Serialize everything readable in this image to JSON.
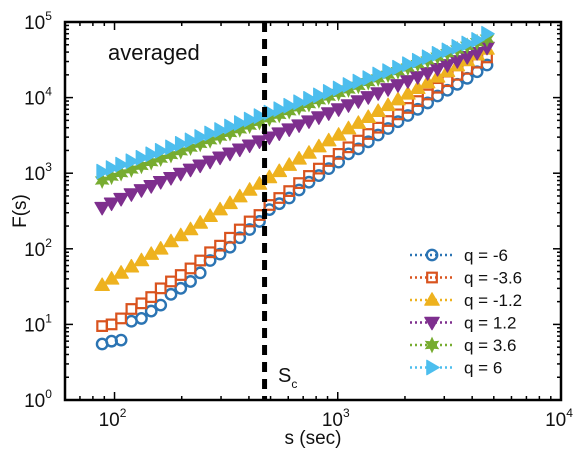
{
  "chart_data": {
    "type": "scatter",
    "xscale": "log",
    "yscale": "log",
    "xlim": [
      60,
      10000
    ],
    "ylim": [
      1,
      100000
    ],
    "xlabel": "s (sec)",
    "ylabel": "F(s)",
    "annotation": "averaged",
    "vline": {
      "x": 470,
      "label_main": "S",
      "label_sub": "c"
    },
    "xticks": [
      {
        "value": 100,
        "base": "10",
        "exp": "2"
      },
      {
        "value": 1000,
        "base": "10",
        "exp": "3"
      },
      {
        "value": 10000,
        "base": "10",
        "exp": "4"
      }
    ],
    "yticks": [
      {
        "value": 1,
        "base": "10",
        "exp": "0"
      },
      {
        "value": 10,
        "base": "10",
        "exp": "1"
      },
      {
        "value": 100,
        "base": "10",
        "exp": "2"
      },
      {
        "value": 1000,
        "base": "10",
        "exp": "3"
      },
      {
        "value": 10000,
        "base": "10",
        "exp": "4"
      },
      {
        "value": 100000,
        "base": "10",
        "exp": "5"
      }
    ],
    "legend_position": "bottom-right",
    "series": [
      {
        "name": "q = -6",
        "marker": "circle",
        "color": "#2b74b3",
        "x": [
          88,
          97,
          107,
          119,
          132,
          146,
          161,
          179,
          198,
          219,
          242,
          268,
          297,
          329,
          364,
          403,
          446,
          494,
          547,
          606,
          671,
          743,
          823,
          911,
          1009,
          1117,
          1237,
          1370,
          1517,
          1680,
          1861,
          2061,
          2282,
          2527,
          2799,
          3099,
          3432,
          3801,
          4209,
          4662
        ],
        "y": [
          5.5,
          6,
          6.2,
          11,
          12,
          15,
          18,
          25,
          30,
          37,
          48,
          70,
          85,
          105,
          140,
          180,
          230,
          330,
          395,
          470,
          600,
          760,
          930,
          1150,
          1400,
          1800,
          2100,
          2600,
          3200,
          3900,
          4800,
          5800,
          7000,
          8500,
          10500,
          12500,
          15000,
          18000,
          22000,
          27000
        ]
      },
      {
        "name": "q = -3.6",
        "marker": "square",
        "color": "#d9531e",
        "x": [
          88,
          97,
          107,
          119,
          132,
          146,
          161,
          179,
          198,
          219,
          242,
          268,
          297,
          329,
          364,
          403,
          446,
          494,
          547,
          606,
          671,
          743,
          823,
          911,
          1009,
          1117,
          1237,
          1370,
          1517,
          1680,
          1861,
          2061,
          2282,
          2527,
          2799,
          3099,
          3432,
          3801,
          4209,
          4662
        ],
        "y": [
          9.5,
          10,
          12,
          16,
          19,
          23,
          30,
          37,
          45,
          55,
          70,
          90,
          110,
          140,
          180,
          230,
          280,
          380,
          470,
          580,
          740,
          920,
          1150,
          1450,
          1800,
          2200,
          2700,
          3300,
          4000,
          4900,
          6000,
          7300,
          9000,
          11000,
          13500,
          16500,
          20000,
          24000,
          29000,
          34000
        ]
      },
      {
        "name": "q = -1.2",
        "marker": "triangle-up",
        "color": "#eeb21f",
        "x": [
          88,
          97,
          107,
          119,
          132,
          146,
          161,
          179,
          198,
          219,
          242,
          268,
          297,
          329,
          364,
          403,
          446,
          494,
          547,
          606,
          671,
          743,
          823,
          911,
          1009,
          1117,
          1237,
          1370,
          1517,
          1680,
          1861,
          2061,
          2282,
          2527,
          2799,
          3099,
          3432,
          3801,
          4209,
          4662
        ],
        "y": [
          33,
          40,
          48,
          58,
          70,
          85,
          100,
          125,
          150,
          180,
          220,
          270,
          330,
          400,
          490,
          600,
          720,
          880,
          1060,
          1280,
          1550,
          1850,
          2250,
          2700,
          3200,
          3900,
          4600,
          5500,
          6600,
          7900,
          9400,
          11200,
          13300,
          15800,
          18800,
          22300,
          26500,
          31000,
          37000,
          44000
        ]
      },
      {
        "name": "q = 1.2",
        "marker": "triangle-down",
        "color": "#7e2f8e",
        "x": [
          88,
          97,
          107,
          119,
          132,
          146,
          161,
          179,
          198,
          219,
          242,
          268,
          297,
          329,
          364,
          403,
          446,
          494,
          547,
          606,
          671,
          743,
          823,
          911,
          1009,
          1117,
          1237,
          1370,
          1517,
          1680,
          1861,
          2061,
          2282,
          2527,
          2799,
          3099,
          3432,
          3801,
          4209,
          4662
        ],
        "y": [
          350,
          400,
          460,
          530,
          600,
          680,
          770,
          870,
          990,
          1120,
          1270,
          1430,
          1620,
          1830,
          2070,
          2340,
          2650,
          2990,
          3380,
          3820,
          4320,
          4880,
          5520,
          6240,
          7050,
          7970,
          9010,
          10200,
          11500,
          13000,
          14700,
          16600,
          18800,
          21200,
          24000,
          27100,
          30600,
          34600,
          39100,
          46000
        ]
      },
      {
        "name": "q = 3.6",
        "marker": "hexagram",
        "color": "#77ac30",
        "x": [
          88,
          97,
          107,
          119,
          132,
          146,
          161,
          179,
          198,
          219,
          242,
          268,
          297,
          329,
          364,
          403,
          446,
          494,
          547,
          606,
          671,
          743,
          823,
          911,
          1009,
          1117,
          1237,
          1370,
          1517,
          1680,
          1861,
          2061,
          2282,
          2527,
          2799,
          3099,
          3432,
          3801,
          4209,
          4662
        ],
        "y": [
          800,
          900,
          1000,
          1120,
          1250,
          1400,
          1560,
          1740,
          1950,
          2180,
          2440,
          2720,
          3040,
          3400,
          3800,
          4250,
          4750,
          5300,
          5900,
          6600,
          7400,
          8200,
          9200,
          10300,
          11500,
          12800,
          14300,
          16000,
          17900,
          20000,
          22300,
          24900,
          27800,
          31000,
          34700,
          38700,
          43300,
          48300,
          54000,
          60000
        ]
      },
      {
        "name": "q = 6",
        "marker": "triangle-right",
        "color": "#4dbeee",
        "x": [
          88,
          97,
          107,
          119,
          132,
          146,
          161,
          179,
          198,
          219,
          242,
          268,
          297,
          329,
          364,
          403,
          446,
          494,
          547,
          606,
          671,
          743,
          823,
          911,
          1009,
          1117,
          1237,
          1370,
          1517,
          1680,
          1861,
          2061,
          2282,
          2527,
          2799,
          3099,
          3432,
          3801,
          4209,
          4662
        ],
        "y": [
          1050,
          1170,
          1300,
          1440,
          1600,
          1780,
          1980,
          2200,
          2450,
          2720,
          3020,
          3360,
          3730,
          4150,
          4610,
          5120,
          5690,
          6330,
          7030,
          7810,
          8680,
          9650,
          10700,
          11900,
          13200,
          14700,
          16300,
          18100,
          20200,
          22400,
          24900,
          27700,
          30800,
          34200,
          38000,
          42200,
          46900,
          52100,
          58000,
          70000
        ]
      }
    ]
  }
}
